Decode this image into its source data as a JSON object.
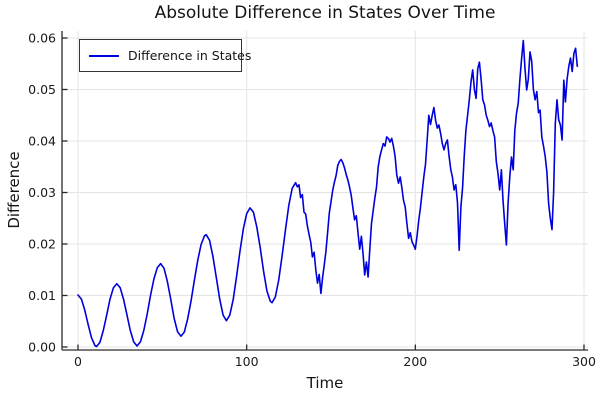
{
  "title": "Absolute Difference in States Over Time",
  "x_axis": {
    "label": "Time",
    "tick_labels": [
      "0",
      "100",
      "200",
      "300"
    ]
  },
  "y_axis": {
    "label": "Difference",
    "tick_labels": [
      "0.00",
      "0.01",
      "0.02",
      "0.03",
      "0.04",
      "0.05",
      "0.06"
    ]
  },
  "legend": {
    "label": "Difference in States"
  },
  "colors": {
    "line": "#0000dd",
    "grid": "#e4e4e4",
    "axis": "#2a2a2a",
    "text": "#1a1a1a",
    "background": "#ffffff"
  },
  "chart_data": {
    "type": "line",
    "title": "Absolute Difference in States Over Time",
    "xlabel": "Time",
    "ylabel": "Difference",
    "xlim": [
      0,
      300
    ],
    "ylim": [
      0,
      0.06
    ],
    "xticks": [
      0,
      100,
      200,
      300
    ],
    "yticks": [
      0,
      0.01,
      0.02,
      0.03,
      0.04,
      0.05,
      0.06
    ],
    "grid": true,
    "legend_position": "top-left",
    "series": [
      {
        "name": "Difference in States",
        "color": "#0000dd",
        "points": [
          [
            0,
            0.0101
          ],
          [
            2,
            0.0093
          ],
          [
            4,
            0.0072
          ],
          [
            6,
            0.0044
          ],
          [
            8,
            0.0018
          ],
          [
            10,
            0.0003
          ],
          [
            11,
            0.0001
          ],
          [
            13,
            0.0009
          ],
          [
            15,
            0.0032
          ],
          [
            17,
            0.0062
          ],
          [
            19,
            0.0093
          ],
          [
            21,
            0.0115
          ],
          [
            23,
            0.0123
          ],
          [
            25,
            0.0115
          ],
          [
            27,
            0.0093
          ],
          [
            29,
            0.0063
          ],
          [
            31,
            0.0032
          ],
          [
            33,
            0.001
          ],
          [
            35,
            0.0002
          ],
          [
            37,
            0.001
          ],
          [
            39,
            0.0032
          ],
          [
            41,
            0.0064
          ],
          [
            43,
            0.01
          ],
          [
            45,
            0.0132
          ],
          [
            47,
            0.0154
          ],
          [
            49,
            0.0162
          ],
          [
            51,
            0.0153
          ],
          [
            53,
            0.0127
          ],
          [
            55,
            0.0092
          ],
          [
            57,
            0.0056
          ],
          [
            59,
            0.003
          ],
          [
            61,
            0.0021
          ],
          [
            63,
            0.0029
          ],
          [
            65,
            0.0054
          ],
          [
            67,
            0.0089
          ],
          [
            69,
            0.013
          ],
          [
            71,
            0.0169
          ],
          [
            73,
            0.0199
          ],
          [
            75,
            0.0216
          ],
          [
            76,
            0.0218
          ],
          [
            78,
            0.0207
          ],
          [
            80,
            0.0176
          ],
          [
            82,
            0.0135
          ],
          [
            84,
            0.0093
          ],
          [
            86,
            0.0062
          ],
          [
            88,
            0.0051
          ],
          [
            90,
            0.0062
          ],
          [
            92,
            0.0092
          ],
          [
            94,
            0.0136
          ],
          [
            96,
            0.0185
          ],
          [
            98,
            0.0229
          ],
          [
            100,
            0.0259
          ],
          [
            102,
            0.027
          ],
          [
            104,
            0.0262
          ],
          [
            106,
            0.0233
          ],
          [
            108,
            0.0193
          ],
          [
            110,
            0.0148
          ],
          [
            112,
            0.0109
          ],
          [
            114,
            0.0089
          ],
          [
            115,
            0.0086
          ],
          [
            117,
            0.0097
          ],
          [
            119,
            0.013
          ],
          [
            121,
            0.0177
          ],
          [
            123,
            0.0228
          ],
          [
            125,
            0.0275
          ],
          [
            127,
            0.0308
          ],
          [
            129,
            0.0319
          ],
          [
            130,
            0.0311
          ],
          [
            131,
            0.0315
          ],
          [
            132,
            0.029
          ],
          [
            133,
            0.0296
          ],
          [
            134,
            0.0262
          ],
          [
            135,
            0.0258
          ],
          [
            136,
            0.0235
          ],
          [
            137,
            0.0218
          ],
          [
            138,
            0.0203
          ],
          [
            139,
            0.0175
          ],
          [
            140,
            0.0184
          ],
          [
            141,
            0.015
          ],
          [
            142,
            0.0124
          ],
          [
            143,
            0.0141
          ],
          [
            144,
            0.0104
          ],
          [
            145,
            0.0135
          ],
          [
            146,
            0.016
          ],
          [
            147,
            0.0185
          ],
          [
            148,
            0.0222
          ],
          [
            149,
            0.026
          ],
          [
            150,
            0.0282
          ],
          [
            151,
            0.0304
          ],
          [
            152,
            0.032
          ],
          [
            153,
            0.0333
          ],
          [
            154,
            0.0352
          ],
          [
            155,
            0.036
          ],
          [
            156,
            0.0364
          ],
          [
            157,
            0.0358
          ],
          [
            158,
            0.0348
          ],
          [
            159,
            0.0335
          ],
          [
            160,
            0.0324
          ],
          [
            161,
            0.031
          ],
          [
            162,
            0.0295
          ],
          [
            163,
            0.027
          ],
          [
            164,
            0.0247
          ],
          [
            165,
            0.0255
          ],
          [
            166,
            0.0222
          ],
          [
            167,
            0.019
          ],
          [
            168,
            0.0215
          ],
          [
            169,
            0.0182
          ],
          [
            170,
            0.014
          ],
          [
            171,
            0.0165
          ],
          [
            172,
            0.0136
          ],
          [
            173,
            0.019
          ],
          [
            174,
            0.024
          ],
          [
            175,
            0.0265
          ],
          [
            176,
            0.029
          ],
          [
            177,
            0.031
          ],
          [
            178,
            0.035
          ],
          [
            179,
            0.037
          ],
          [
            180,
            0.0383
          ],
          [
            181,
            0.0395
          ],
          [
            182,
            0.039
          ],
          [
            183,
            0.0408
          ],
          [
            184,
            0.0405
          ],
          [
            185,
            0.0398
          ],
          [
            186,
            0.0405
          ],
          [
            187,
            0.039
          ],
          [
            188,
            0.037
          ],
          [
            189,
            0.0334
          ],
          [
            190,
            0.0318
          ],
          [
            191,
            0.033
          ],
          [
            192,
            0.031
          ],
          [
            193,
            0.0285
          ],
          [
            194,
            0.0272
          ],
          [
            195,
            0.024
          ],
          [
            196,
            0.0211
          ],
          [
            197,
            0.0222
          ],
          [
            198,
            0.0204
          ],
          [
            199,
            0.0198
          ],
          [
            200,
            0.019
          ],
          [
            201,
            0.0215
          ],
          [
            202,
            0.0245
          ],
          [
            203,
            0.027
          ],
          [
            204,
            0.03
          ],
          [
            205,
            0.033
          ],
          [
            206,
            0.0355
          ],
          [
            207,
            0.04
          ],
          [
            208,
            0.045
          ],
          [
            209,
            0.0432
          ],
          [
            210,
            0.045
          ],
          [
            211,
            0.0465
          ],
          [
            212,
            0.044
          ],
          [
            213,
            0.0425
          ],
          [
            214,
            0.0431
          ],
          [
            215,
            0.0415
          ],
          [
            216,
            0.0395
          ],
          [
            217,
            0.0383
          ],
          [
            218,
            0.0395
          ],
          [
            219,
            0.0402
          ],
          [
            220,
            0.037
          ],
          [
            221,
            0.0344
          ],
          [
            222,
            0.033
          ],
          [
            223,
            0.0305
          ],
          [
            224,
            0.0315
          ],
          [
            225,
            0.028
          ],
          [
            226,
            0.0188
          ],
          [
            227,
            0.0272
          ],
          [
            228,
            0.031
          ],
          [
            229,
            0.037
          ],
          [
            230,
            0.0421
          ],
          [
            231,
            0.045
          ],
          [
            232,
            0.048
          ],
          [
            233,
            0.0515
          ],
          [
            234,
            0.0538
          ],
          [
            235,
            0.05
          ],
          [
            236,
            0.0483
          ],
          [
            237,
            0.054
          ],
          [
            238,
            0.0553
          ],
          [
            239,
            0.052
          ],
          [
            240,
            0.048
          ],
          [
            241,
            0.047
          ],
          [
            242,
            0.045
          ],
          [
            243,
            0.044
          ],
          [
            244,
            0.0428
          ],
          [
            245,
            0.0435
          ],
          [
            246,
            0.042
          ],
          [
            247,
            0.0408
          ],
          [
            248,
            0.036
          ],
          [
            249,
            0.0337
          ],
          [
            250,
            0.0305
          ],
          [
            251,
            0.0344
          ],
          [
            252,
            0.0285
          ],
          [
            253,
            0.024
          ],
          [
            254,
            0.0198
          ],
          [
            255,
            0.028
          ],
          [
            256,
            0.0331
          ],
          [
            257,
            0.0369
          ],
          [
            258,
            0.0344
          ],
          [
            259,
            0.042
          ],
          [
            260,
            0.0454
          ],
          [
            261,
            0.0473
          ],
          [
            262,
            0.052
          ],
          [
            263,
            0.056
          ],
          [
            264,
            0.0595
          ],
          [
            265,
            0.054
          ],
          [
            266,
            0.0499
          ],
          [
            267,
            0.052
          ],
          [
            268,
            0.0573
          ],
          [
            269,
            0.0555
          ],
          [
            270,
            0.05
          ],
          [
            271,
            0.048
          ],
          [
            272,
            0.0496
          ],
          [
            273,
            0.0455
          ],
          [
            274,
            0.046
          ],
          [
            275,
            0.0408
          ],
          [
            276,
            0.039
          ],
          [
            277,
            0.037
          ],
          [
            278,
            0.034
          ],
          [
            279,
            0.0279
          ],
          [
            280,
            0.025
          ],
          [
            281,
            0.0228
          ],
          [
            282,
            0.03
          ],
          [
            283,
            0.0434
          ],
          [
            284,
            0.048
          ],
          [
            285,
            0.0441
          ],
          [
            286,
            0.0431
          ],
          [
            287,
            0.0402
          ],
          [
            288,
            0.0518
          ],
          [
            289,
            0.0476
          ],
          [
            290,
            0.052
          ],
          [
            291,
            0.0545
          ],
          [
            292,
            0.0561
          ],
          [
            293,
            0.0535
          ],
          [
            294,
            0.057
          ],
          [
            295,
            0.058
          ],
          [
            296,
            0.0545
          ]
        ]
      }
    ]
  }
}
